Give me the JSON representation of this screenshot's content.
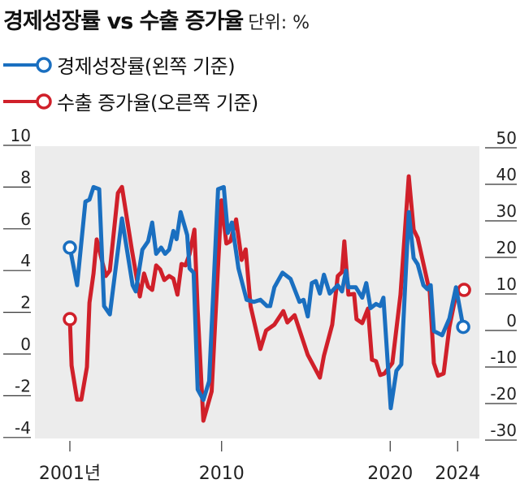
{
  "title": "경제성장률 vs 수출 증가율",
  "unit": "단위: %",
  "legend": [
    {
      "label": "경제성장률(왼쪽 기준)",
      "color": "#1a6fc0"
    },
    {
      "label": "수출 증가율(오른쪽 기준)",
      "color": "#d0202a"
    }
  ],
  "chart_data": {
    "type": "line",
    "title": "경제성장률 vs 수출 증가율",
    "unit": "단위: %",
    "background": "#ececec",
    "grid": false,
    "legend_position": "top-left",
    "x_ticks": [
      {
        "value": 2001,
        "label": "2001년"
      },
      {
        "value": 2010,
        "label": "2010"
      },
      {
        "value": 2020,
        "label": "2020"
      },
      {
        "value": 2024,
        "label": "2024"
      }
    ],
    "y_left": {
      "range": [
        -4,
        10
      ],
      "ticks": [
        "10",
        "8",
        "6",
        "4",
        "2",
        "0",
        "-2",
        "-4"
      ]
    },
    "y_right": {
      "range": [
        -30,
        50
      ],
      "ticks": [
        "50",
        "40",
        "30",
        "20",
        "10",
        "0",
        "-10",
        "-20",
        "-30"
      ]
    },
    "series": [
      {
        "name": "경제성장률(왼쪽 기준)",
        "axis": "left",
        "color": "#1a6fc0",
        "points": [
          [
            2001.0,
            5.1
          ],
          [
            2001.43,
            3.3
          ],
          [
            2001.92,
            7.3
          ],
          [
            2002.16,
            7.4
          ],
          [
            2002.4,
            8.0
          ],
          [
            2002.74,
            7.9
          ],
          [
            2003.03,
            2.3
          ],
          [
            2003.37,
            1.9
          ],
          [
            2004.09,
            6.5
          ],
          [
            2004.72,
            3.3
          ],
          [
            2004.91,
            3.0
          ],
          [
            2005.3,
            5.0
          ],
          [
            2005.64,
            5.4
          ],
          [
            2005.88,
            6.3
          ],
          [
            2006.12,
            4.8
          ],
          [
            2006.41,
            5.1
          ],
          [
            2006.65,
            4.8
          ],
          [
            2006.89,
            5.0
          ],
          [
            2007.14,
            5.9
          ],
          [
            2007.33,
            5.5
          ],
          [
            2007.57,
            6.8
          ],
          [
            2007.96,
            5.7
          ],
          [
            2008.1,
            4.1
          ],
          [
            2008.34,
            3.9
          ],
          [
            2008.58,
            -1.7
          ],
          [
            2008.92,
            -2.2
          ],
          [
            2009.26,
            -1.3
          ],
          [
            2009.79,
            7.9
          ],
          [
            2010.13,
            8.0
          ],
          [
            2010.37,
            5.8
          ],
          [
            2010.61,
            6.3
          ],
          [
            2011.0,
            4.1
          ],
          [
            2011.48,
            2.6
          ],
          [
            2011.92,
            2.5
          ],
          [
            2012.3,
            2.6
          ],
          [
            2012.69,
            2.3
          ],
          [
            2012.88,
            2.3
          ],
          [
            2013.13,
            3.2
          ],
          [
            2013.61,
            3.9
          ],
          [
            2014.09,
            3.6
          ],
          [
            2014.62,
            2.5
          ],
          [
            2014.86,
            2.6
          ],
          [
            2015.11,
            1.8
          ],
          [
            2015.35,
            3.4
          ],
          [
            2015.59,
            3.5
          ],
          [
            2015.83,
            2.9
          ],
          [
            2016.07,
            3.8
          ],
          [
            2016.41,
            2.9
          ],
          [
            2016.89,
            3.3
          ],
          [
            2017.14,
            3.0
          ],
          [
            2017.38,
            4.0
          ],
          [
            2017.52,
            3.2
          ],
          [
            2017.96,
            3.2
          ],
          [
            2018.34,
            2.7
          ],
          [
            2018.58,
            3.4
          ],
          [
            2018.83,
            2.2
          ],
          [
            2019.16,
            2.4
          ],
          [
            2019.41,
            2.3
          ],
          [
            2019.6,
            2.7
          ],
          [
            2020.03,
            -2.6
          ],
          [
            2020.37,
            -0.8
          ],
          [
            2020.66,
            -0.5
          ],
          [
            2021.1,
            6.8
          ],
          [
            2021.39,
            4.6
          ],
          [
            2021.63,
            4.3
          ],
          [
            2021.97,
            3.3
          ],
          [
            2022.21,
            3.1
          ],
          [
            2022.4,
            3.3
          ],
          [
            2022.59,
            1.1
          ],
          [
            2023.08,
            0.9
          ],
          [
            2023.51,
            1.7
          ],
          [
            2023.9,
            3.2
          ],
          [
            2024.33,
            1.3
          ]
        ]
      },
      {
        "name": "수출 증가율(오른쪽 기준)",
        "axis": "right",
        "color": "#d0202a",
        "points": [
          [
            2001.0,
            3.1
          ],
          [
            2001.1,
            -9.6
          ],
          [
            2001.43,
            -18.9
          ],
          [
            2001.68,
            -18.9
          ],
          [
            2002.01,
            -10
          ],
          [
            2002.16,
            7.6
          ],
          [
            2002.4,
            15.6
          ],
          [
            2002.59,
            24.9
          ],
          [
            2003.13,
            14.9
          ],
          [
            2003.37,
            16.4
          ],
          [
            2003.85,
            37.6
          ],
          [
            2004.09,
            39.3
          ],
          [
            2004.67,
            22.2
          ],
          [
            2005.15,
            9.3
          ],
          [
            2005.4,
            15.6
          ],
          [
            2005.64,
            12
          ],
          [
            2005.88,
            11.1
          ],
          [
            2006.12,
            17.8
          ],
          [
            2006.36,
            16.7
          ],
          [
            2006.6,
            13.8
          ],
          [
            2006.89,
            14.9
          ],
          [
            2007.14,
            14.2
          ],
          [
            2007.38,
            9.8
          ],
          [
            2007.62,
            18.2
          ],
          [
            2007.86,
            17.8
          ],
          [
            2008.1,
            20.9
          ],
          [
            2008.39,
            27.6
          ],
          [
            2008.58,
            5.3
          ],
          [
            2008.92,
            -24.7
          ],
          [
            2009.41,
            -16.7
          ],
          [
            2009.99,
            35.6
          ],
          [
            2010.28,
            23.8
          ],
          [
            2010.52,
            24.4
          ],
          [
            2010.86,
            30.4
          ],
          [
            2011.19,
            19.3
          ],
          [
            2011.43,
            22.2
          ],
          [
            2011.72,
            6.7
          ],
          [
            2012.3,
            -5.1
          ],
          [
            2012.64,
            0
          ],
          [
            2013.13,
            1.6
          ],
          [
            2013.66,
            5.3
          ],
          [
            2013.9,
            2.2
          ],
          [
            2014.33,
            4.2
          ],
          [
            2015.11,
            -6.7
          ],
          [
            2015.83,
            -12.9
          ],
          [
            2016.07,
            -6.9
          ],
          [
            2016.56,
            1.6
          ],
          [
            2016.89,
            14.9
          ],
          [
            2017.14,
            16
          ],
          [
            2017.28,
            24.4
          ],
          [
            2017.52,
            9.8
          ],
          [
            2017.86,
            10
          ],
          [
            2018.0,
            3.1
          ],
          [
            2018.34,
            2
          ],
          [
            2018.68,
            6
          ],
          [
            2018.92,
            -8
          ],
          [
            2019.16,
            -8.4
          ],
          [
            2019.41,
            -12.2
          ],
          [
            2019.65,
            -11.8
          ],
          [
            2020.13,
            -8.9
          ],
          [
            2020.61,
            9.8
          ],
          [
            2021.1,
            42.2
          ],
          [
            2021.39,
            27.6
          ],
          [
            2021.63,
            25.3
          ],
          [
            2022.35,
            10.4
          ],
          [
            2022.59,
            -8.9
          ],
          [
            2022.84,
            -12.4
          ],
          [
            2023.17,
            -11.8
          ],
          [
            2023.51,
            0.9
          ],
          [
            2023.9,
            9.8
          ],
          [
            2024.38,
            11.1
          ]
        ]
      }
    ]
  }
}
